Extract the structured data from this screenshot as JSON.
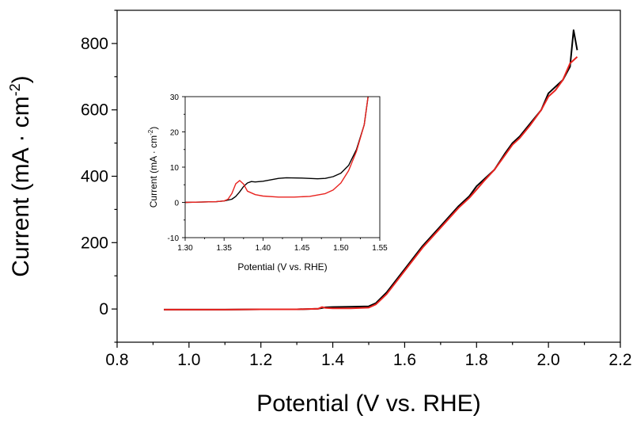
{
  "chart_data": [
    {
      "id": "main",
      "type": "line",
      "xlabel": "Potential (V vs. RHE)",
      "ylabel_main": "Current (mA · cm",
      "ylabel_sup": "-2",
      "ylabel_close": ")",
      "xlim": [
        0.8,
        2.2
      ],
      "ylim": [
        -100,
        900
      ],
      "x_ticks": [
        0.8,
        1.0,
        1.2,
        1.4,
        1.6,
        1.8,
        2.0,
        2.2
      ],
      "x_tick_labels": [
        "0.8",
        "1.0",
        "1.2",
        "1.4",
        "1.6",
        "1.8",
        "2.0",
        "2.2"
      ],
      "y_ticks": [
        0,
        200,
        400,
        600,
        800
      ],
      "y_tick_labels": [
        "0",
        "200",
        "400",
        "600",
        "800"
      ],
      "series": [
        {
          "name": "black",
          "color": "#000000",
          "x": [
            0.93,
            1.0,
            1.1,
            1.2,
            1.3,
            1.36,
            1.38,
            1.4,
            1.45,
            1.5,
            1.52,
            1.55,
            1.6,
            1.65,
            1.7,
            1.75,
            1.78,
            1.8,
            1.82,
            1.85,
            1.88,
            1.9,
            1.92,
            1.95,
            1.98,
            2.0,
            2.02,
            2.04,
            2.06,
            2.07,
            2.08
          ],
          "y": [
            -2,
            -2,
            -2,
            -1,
            -1,
            1,
            5,
            6,
            7,
            8,
            18,
            50,
            120,
            190,
            250,
            310,
            340,
            370,
            390,
            420,
            470,
            500,
            520,
            560,
            600,
            650,
            670,
            690,
            730,
            840,
            780
          ]
        },
        {
          "name": "red",
          "color": "#e8231f",
          "x": [
            0.93,
            1.0,
            1.1,
            1.2,
            1.3,
            1.36,
            1.37,
            1.38,
            1.4,
            1.45,
            1.5,
            1.52,
            1.55,
            1.6,
            1.65,
            1.7,
            1.75,
            1.78,
            1.8,
            1.82,
            1.85,
            1.88,
            1.9,
            1.92,
            1.95,
            1.98,
            2.0,
            2.02,
            2.04,
            2.06,
            2.08
          ],
          "y": [
            -2,
            -2,
            -2,
            -1,
            -1,
            1,
            6,
            3,
            2,
            2,
            4,
            14,
            45,
            115,
            185,
            245,
            305,
            335,
            360,
            385,
            420,
            465,
            495,
            515,
            555,
            600,
            640,
            660,
            690,
            740,
            760
          ]
        }
      ]
    },
    {
      "id": "inset",
      "type": "line",
      "xlabel": "Potential (V vs. RHE)",
      "ylabel_main": "Current (mA · cm",
      "ylabel_sup": "-2",
      "ylabel_close": ")",
      "xlim": [
        1.3,
        1.55
      ],
      "ylim": [
        -10,
        30
      ],
      "x_ticks": [
        1.3,
        1.35,
        1.4,
        1.45,
        1.5,
        1.55
      ],
      "x_tick_labels": [
        "1.30",
        "1.35",
        "1.40",
        "1.45",
        "1.50",
        "1.55"
      ],
      "y_ticks": [
        -10,
        0,
        10,
        20,
        30
      ],
      "y_tick_labels": [
        "-10",
        "0",
        "10",
        "20",
        "30"
      ],
      "series": [
        {
          "name": "black",
          "color": "#000000",
          "x": [
            1.3,
            1.32,
            1.34,
            1.35,
            1.36,
            1.365,
            1.37,
            1.375,
            1.38,
            1.385,
            1.39,
            1.4,
            1.42,
            1.43,
            1.45,
            1.47,
            1.48,
            1.49,
            1.5,
            1.51,
            1.52,
            1.53,
            1.535
          ],
          "y": [
            0,
            0.1,
            0.2,
            0.4,
            0.9,
            1.7,
            3.0,
            4.5,
            5.5,
            5.9,
            5.8,
            6.0,
            6.8,
            7.0,
            6.9,
            6.7,
            6.8,
            7.3,
            8.3,
            10.5,
            15.0,
            22.0,
            30.0
          ]
        },
        {
          "name": "red",
          "color": "#e8231f",
          "x": [
            1.3,
            1.32,
            1.34,
            1.35,
            1.355,
            1.36,
            1.365,
            1.37,
            1.375,
            1.38,
            1.39,
            1.4,
            1.42,
            1.44,
            1.46,
            1.48,
            1.49,
            1.5,
            1.51,
            1.52,
            1.53,
            1.535
          ],
          "y": [
            0,
            0.1,
            0.2,
            0.4,
            0.9,
            2.5,
            5.3,
            6.2,
            5.2,
            3.2,
            2.2,
            1.8,
            1.5,
            1.5,
            1.7,
            2.5,
            3.5,
            5.5,
            9.0,
            14.5,
            22.0,
            30.0
          ]
        }
      ]
    }
  ]
}
